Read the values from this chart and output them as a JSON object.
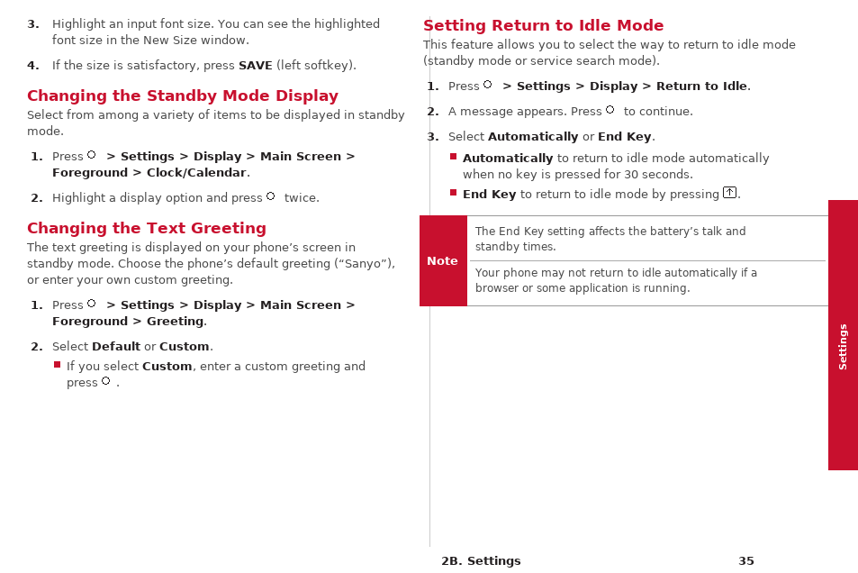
{
  "bg_color": "#ffffff",
  "red_color": "#c8102e",
  "text_color": "#231f20",
  "gray_color": "#4a4a4a",
  "page_width": 9.54,
  "page_height": 6.36
}
